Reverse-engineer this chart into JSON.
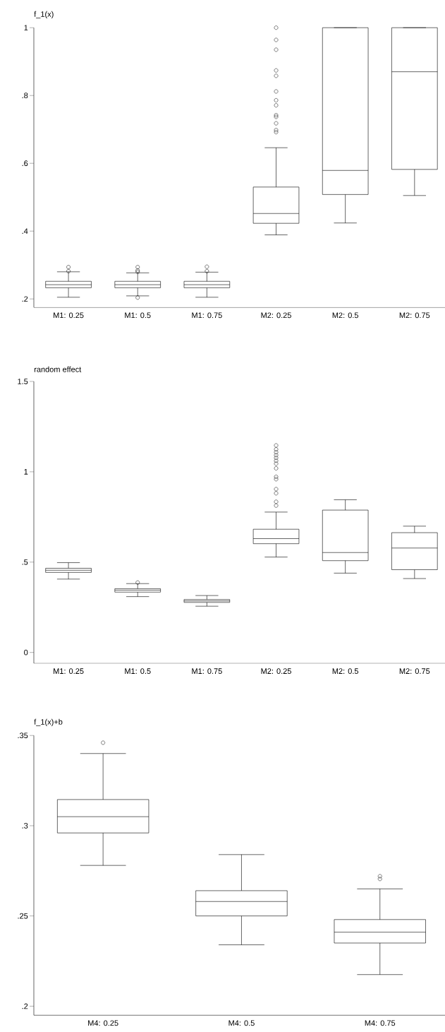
{
  "chart_data": [
    {
      "type": "box",
      "ylabel": "f_1(x)",
      "categories": [
        "M1: 0.25",
        "M1: 0.5",
        "M1: 0.75",
        "M2: 0.25",
        "M2: 0.5",
        "M2: 0.75"
      ],
      "boxes": [
        {
          "low": 0.205,
          "q1": 0.233,
          "median": 0.242,
          "q3": 0.252,
          "high": 0.28,
          "outliers": [
            0.294,
            0.282
          ]
        },
        {
          "low": 0.209,
          "q1": 0.233,
          "median": 0.242,
          "q3": 0.252,
          "high": 0.277,
          "outliers": [
            0.294,
            0.284,
            0.28,
            0.204
          ]
        },
        {
          "low": 0.205,
          "q1": 0.233,
          "median": 0.242,
          "q3": 0.252,
          "high": 0.279,
          "outliers": [
            0.295,
            0.282
          ]
        },
        {
          "low": 0.389,
          "q1": 0.423,
          "median": 0.452,
          "q3": 0.53,
          "high": 0.646,
          "outliers": [
            1.0,
            0.964,
            0.935,
            0.874,
            0.858,
            0.812,
            0.786,
            0.771,
            0.742,
            0.737,
            0.718,
            0.698,
            0.692
          ]
        },
        {
          "low": 0.424,
          "q1": 0.508,
          "median": 0.579,
          "q3": 1.0,
          "high": 1.0
        },
        {
          "low": 0.505,
          "q1": 0.582,
          "median": 0.87,
          "q3": 1.0,
          "high": 1.0
        }
      ],
      "ylim": [
        0.175,
        1.0
      ],
      "yticks": [
        {
          "value": 0.2,
          "label": ".2"
        },
        {
          "value": 0.4,
          "label": ".4"
        },
        {
          "value": 0.6,
          "label": ".6"
        },
        {
          "value": 0.8,
          "label": ".8"
        },
        1
      ]
    },
    {
      "type": "box",
      "ylabel": "random effect",
      "categories": [
        "M1: 0.25",
        "M1: 0.5",
        "M1: 0.75",
        "M2: 0.25",
        "M2: 0.5",
        "M2: 0.75"
      ],
      "boxes": [
        {
          "low": 0.406,
          "q1": 0.443,
          "median": 0.455,
          "q3": 0.466,
          "high": 0.497
        },
        {
          "low": 0.309,
          "q1": 0.334,
          "median": 0.345,
          "q3": 0.353,
          "high": 0.381,
          "outliers": [
            0.387
          ]
        },
        {
          "low": 0.256,
          "q1": 0.277,
          "median": 0.285,
          "q3": 0.293,
          "high": 0.315
        },
        {
          "low": 0.528,
          "q1": 0.602,
          "median": 0.63,
          "q3": 0.682,
          "high": 0.777,
          "outliers": [
            1.146,
            1.124,
            1.108,
            1.092,
            1.077,
            1.061,
            1.045,
            1.019,
            0.972,
            0.959,
            0.904,
            0.881,
            0.834,
            0.813
          ]
        },
        {
          "low": 0.439,
          "q1": 0.508,
          "median": 0.553,
          "q3": 0.788,
          "high": 0.845
        },
        {
          "low": 0.409,
          "q1": 0.458,
          "median": 0.578,
          "q3": 0.663,
          "high": 0.699
        }
      ],
      "ylim": [
        -0.06,
        1.5
      ],
      "yticks": [
        0,
        {
          "value": 0.5,
          "label": ".5"
        },
        1,
        1.5
      ]
    },
    {
      "type": "box",
      "ylabel": "f_1(x)+b",
      "categories": [
        "M4: 0.25",
        "M4: 0.5",
        "M4: 0.75"
      ],
      "boxes": [
        {
          "low": 0.278,
          "q1": 0.296,
          "median": 0.305,
          "q3": 0.3145,
          "high": 0.34,
          "outliers": [
            0.346
          ]
        },
        {
          "low": 0.234,
          "q1": 0.25,
          "median": 0.258,
          "q3": 0.264,
          "high": 0.284
        },
        {
          "low": 0.2175,
          "q1": 0.235,
          "median": 0.241,
          "q3": 0.248,
          "high": 0.265,
          "outliers": [
            0.272,
            0.2705
          ]
        }
      ],
      "ylim": [
        0.195,
        0.35
      ],
      "yticks": [
        {
          "value": 0.2,
          "label": ".2"
        },
        {
          "value": 0.25,
          "label": ".25"
        },
        {
          "value": 0.3,
          "label": ".3"
        },
        {
          "value": 0.35,
          "label": ".35"
        }
      ]
    }
  ]
}
